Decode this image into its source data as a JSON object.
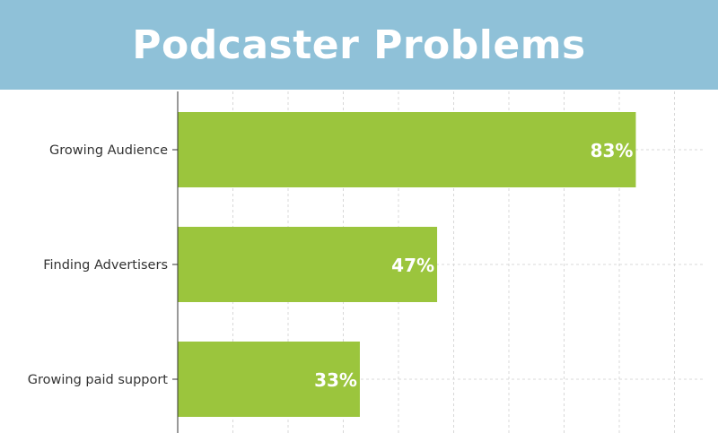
{
  "title": "Podcaster Problems",
  "colors": {
    "header": "#8fc1d8",
    "bar": "#9bc53d",
    "grid": "#d8d8d8",
    "axis": "#333333"
  },
  "chart_data": {
    "type": "bar",
    "orientation": "horizontal",
    "title": "Podcaster Problems",
    "categories": [
      "Growing Audience",
      "Finding Advertisers",
      "Growing paid support"
    ],
    "values": [
      83,
      47,
      33
    ],
    "value_labels": [
      "83%",
      "47%",
      "33%"
    ],
    "xlim": [
      0,
      100
    ],
    "grid": true
  }
}
